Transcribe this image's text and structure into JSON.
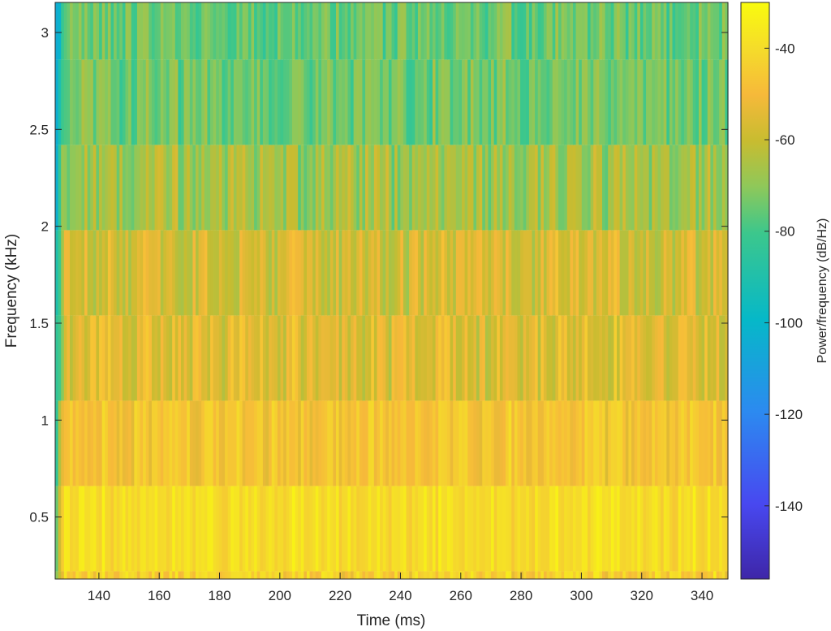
{
  "chart_data": {
    "type": "heatmap",
    "title": "",
    "xlabel": "Time (ms)",
    "ylabel": "Frequency (kHz)",
    "colorbar_label": "Power/frequency (dB/Hz)",
    "xlim": [
      125.5,
      348.6
    ],
    "ylim": [
      0.18,
      3.155
    ],
    "clim": [
      -156,
      -30
    ],
    "xticks": [
      140,
      160,
      180,
      200,
      220,
      240,
      260,
      280,
      300,
      320,
      340
    ],
    "xtick_labels": [
      "140",
      "160",
      "180",
      "200",
      "220",
      "240",
      "260",
      "280",
      "300",
      "320",
      "340"
    ],
    "yticks": [
      0.5,
      1,
      1.5,
      2,
      2.5,
      3
    ],
    "ytick_labels": [
      "0.5",
      "1",
      "1.5",
      "2",
      "2.5",
      "3"
    ],
    "cticks": [
      -40,
      -60,
      -80,
      -100,
      -120,
      -140
    ],
    "ctick_labels": [
      "-40",
      "-60",
      "-80",
      "-100",
      "-120",
      "-140"
    ],
    "colormap": "parula",
    "frequency_bins_khz": [
      0,
      0.44,
      0.88,
      1.32,
      1.76,
      2.2,
      2.64,
      3.08
    ],
    "bin_mean_power_db": [
      -44,
      -40,
      -48,
      -55,
      -58,
      -67,
      -74,
      -75
    ],
    "bin_spread_db": [
      8,
      5,
      6,
      9,
      9,
      9,
      7,
      7
    ],
    "time_columns": 230
  }
}
